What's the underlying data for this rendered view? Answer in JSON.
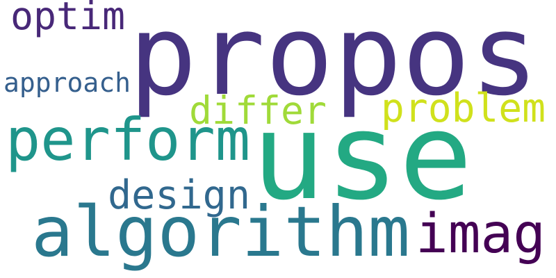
{
  "words": [
    {
      "text": "propos",
      "color": "#463480"
    },
    {
      "text": "use",
      "color": "#23a983"
    },
    {
      "text": "perform",
      "color": "#1f958b"
    },
    {
      "text": "algorithm",
      "color": "#2a788e"
    },
    {
      "text": "imag",
      "color": "#440154"
    },
    {
      "text": "design",
      "color": "#31688e"
    },
    {
      "text": "optim",
      "color": "#482878"
    },
    {
      "text": "approach",
      "color": "#355f8d"
    },
    {
      "text": "differ",
      "color": "#a0da39"
    },
    {
      "text": "problem",
      "color": "#d0e11c"
    }
  ]
}
